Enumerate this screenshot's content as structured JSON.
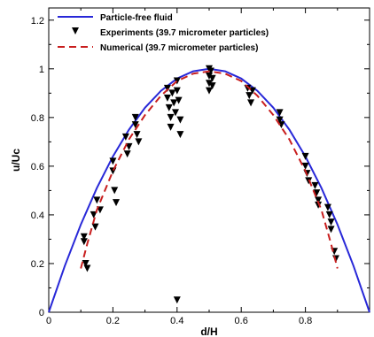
{
  "chart_data": {
    "type": "line",
    "xlabel": "d/H",
    "ylabel": "u/Uc",
    "xlim": [
      0,
      1
    ],
    "ylim": [
      0,
      1.25
    ],
    "xticks": [
      0,
      0.2,
      0.4,
      0.6,
      0.8
    ],
    "yticks": [
      0,
      0.2,
      0.4,
      0.6,
      0.8,
      1,
      1.2
    ],
    "xtick_labels": [
      "0",
      "0.2",
      "0.4",
      "0.6",
      "0.8"
    ],
    "ytick_labels": [
      "0",
      "0.2",
      "0.4",
      "0.6",
      "0.8",
      "1",
      "1.2"
    ],
    "legend_position": "top-left",
    "grid": false,
    "series": [
      {
        "name": "Particle-free fluid",
        "style": "solid-line",
        "color": "#2828d8",
        "x": [
          0,
          0.05,
          0.1,
          0.15,
          0.2,
          0.25,
          0.3,
          0.35,
          0.4,
          0.45,
          0.5,
          0.55,
          0.6,
          0.65,
          0.7,
          0.75,
          0.8,
          0.85,
          0.9,
          0.95,
          1
        ],
        "y": [
          0,
          0.19,
          0.36,
          0.51,
          0.64,
          0.75,
          0.84,
          0.91,
          0.96,
          0.99,
          1.0,
          0.99,
          0.96,
          0.91,
          0.84,
          0.75,
          0.64,
          0.51,
          0.36,
          0.19,
          0
        ]
      },
      {
        "name": "Experiments (39.7 micrometer particles)",
        "style": "markers",
        "marker": "triangle-down",
        "color": "#000000",
        "x": [
          0.11,
          0.11,
          0.115,
          0.12,
          0.14,
          0.145,
          0.15,
          0.16,
          0.2,
          0.2,
          0.205,
          0.21,
          0.24,
          0.245,
          0.25,
          0.27,
          0.27,
          0.275,
          0.28,
          0.37,
          0.37,
          0.375,
          0.38,
          0.38,
          0.385,
          0.39,
          0.395,
          0.4,
          0.4,
          0.405,
          0.41,
          0.41,
          0.5,
          0.5,
          0.5,
          0.5,
          0.505,
          0.51,
          0.51,
          0.62,
          0.625,
          0.63,
          0.635,
          0.72,
          0.72,
          0.725,
          0.8,
          0.8,
          0.805,
          0.81,
          0.83,
          0.835,
          0.84,
          0.84,
          0.87,
          0.875,
          0.88,
          0.88,
          0.89,
          0.895,
          0.4
        ],
        "y": [
          0.31,
          0.29,
          0.2,
          0.18,
          0.4,
          0.35,
          0.46,
          0.42,
          0.62,
          0.58,
          0.5,
          0.45,
          0.72,
          0.65,
          0.68,
          0.8,
          0.77,
          0.73,
          0.7,
          0.92,
          0.88,
          0.84,
          0.8,
          0.76,
          0.9,
          0.86,
          0.82,
          0.95,
          0.91,
          0.87,
          0.79,
          0.73,
          1.0,
          0.97,
          0.94,
          0.91,
          0.99,
          0.96,
          0.93,
          0.92,
          0.89,
          0.86,
          0.91,
          0.82,
          0.79,
          0.77,
          0.64,
          0.6,
          0.57,
          0.54,
          0.52,
          0.49,
          0.46,
          0.44,
          0.43,
          0.4,
          0.37,
          0.34,
          0.25,
          0.22,
          0.05
        ]
      },
      {
        "name": "Numerical (39.7 micrometer particles)",
        "style": "dashed-line",
        "color": "#c81e1e",
        "x": [
          0.1,
          0.12,
          0.15,
          0.2,
          0.25,
          0.3,
          0.35,
          0.4,
          0.45,
          0.5,
          0.55,
          0.6,
          0.65,
          0.7,
          0.75,
          0.8,
          0.85,
          0.88,
          0.9
        ],
        "y": [
          0.18,
          0.28,
          0.42,
          0.58,
          0.71,
          0.81,
          0.89,
          0.95,
          0.98,
          0.99,
          0.98,
          0.95,
          0.89,
          0.81,
          0.71,
          0.58,
          0.42,
          0.28,
          0.18
        ]
      }
    ]
  }
}
